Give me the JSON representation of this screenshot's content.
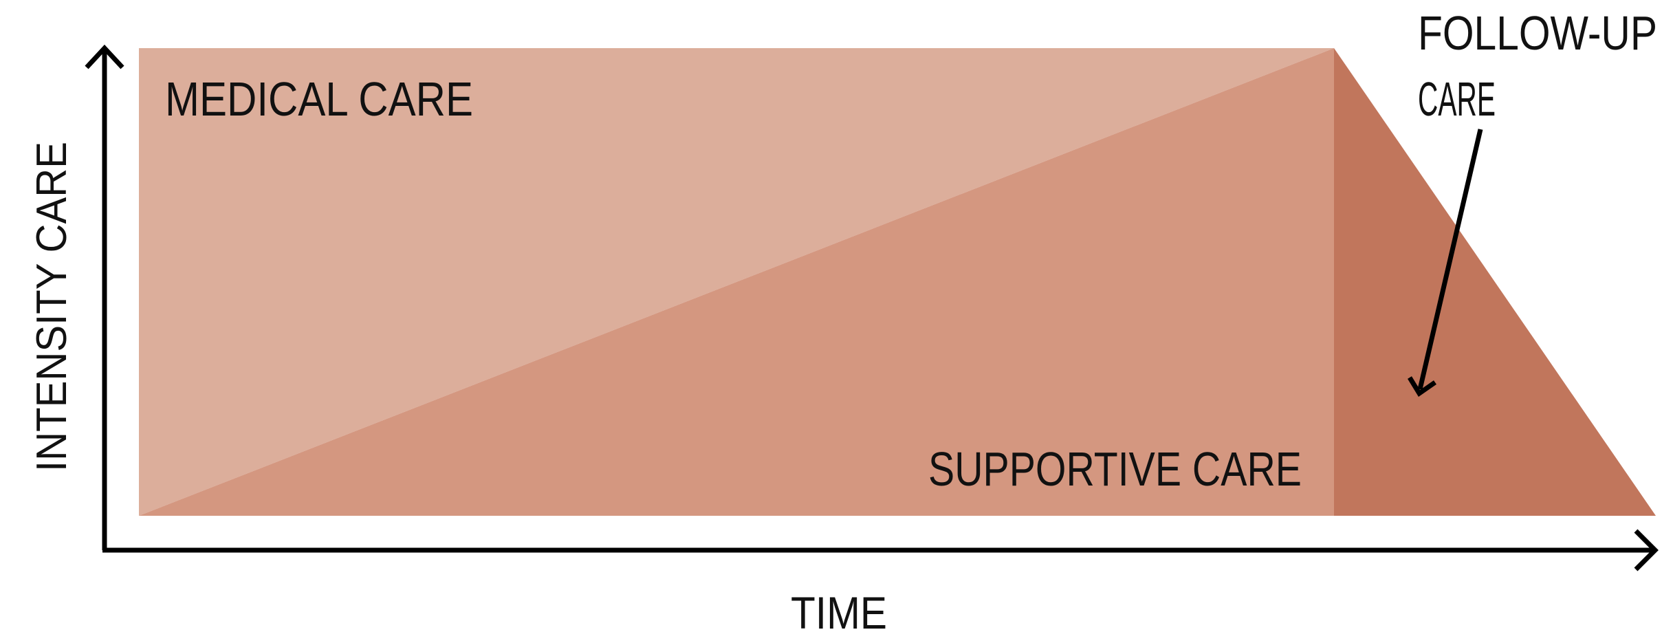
{
  "axes": {
    "y_label": "INTENSITY CARE",
    "x_label": "TIME"
  },
  "regions": {
    "medical": {
      "label": "MEDICAL CARE",
      "color": "#dcae9b"
    },
    "supportive": {
      "label": "SUPPORTIVE CARE",
      "color": "#d49780"
    },
    "follow_up": {
      "label_line1": "FOLLOW-UP",
      "label_line2": "CARE",
      "color": "#c1765c"
    }
  },
  "colors": {
    "axis": "#000000",
    "text": "#111111",
    "background": "#ffffff"
  }
}
